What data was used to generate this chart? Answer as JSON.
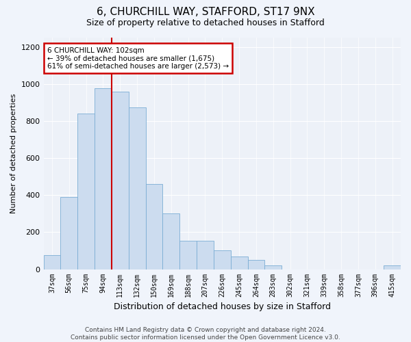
{
  "title1": "6, CHURCHILL WAY, STAFFORD, ST17 9NX",
  "title2": "Size of property relative to detached houses in Stafford",
  "xlabel": "Distribution of detached houses by size in Stafford",
  "ylabel": "Number of detached properties",
  "categories": [
    "37sqm",
    "56sqm",
    "75sqm",
    "94sqm",
    "113sqm",
    "132sqm",
    "150sqm",
    "169sqm",
    "188sqm",
    "207sqm",
    "226sqm",
    "245sqm",
    "264sqm",
    "283sqm",
    "302sqm",
    "321sqm",
    "339sqm",
    "358sqm",
    "377sqm",
    "396sqm",
    "415sqm"
  ],
  "values": [
    75,
    390,
    840,
    975,
    960,
    875,
    460,
    300,
    155,
    155,
    100,
    70,
    50,
    20,
    0,
    0,
    0,
    0,
    0,
    0,
    20
  ],
  "bar_color": "#ccdcef",
  "bar_edge_color": "#7aadd4",
  "vline_position": 3.5,
  "vline_color": "#cc0000",
  "annotation_text": "6 CHURCHILL WAY: 102sqm\n← 39% of detached houses are smaller (1,675)\n61% of semi-detached houses are larger (2,573) →",
  "annotation_box_color": "#cc0000",
  "ylim": [
    0,
    1250
  ],
  "yticks": [
    0,
    200,
    400,
    600,
    800,
    1000,
    1200
  ],
  "footer": "Contains HM Land Registry data © Crown copyright and database right 2024.\nContains public sector information licensed under the Open Government Licence v3.0.",
  "bg_color": "#f0f4fb",
  "plot_bg_color": "#edf1f8"
}
